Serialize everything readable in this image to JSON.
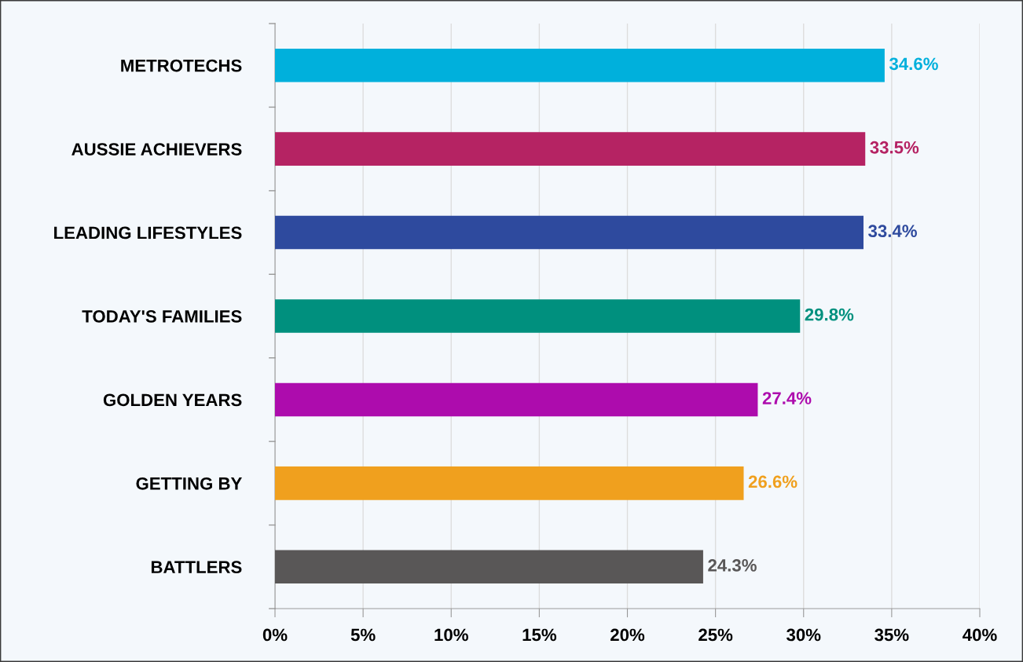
{
  "chart_data": {
    "type": "bar",
    "orientation": "horizontal",
    "categories": [
      "METROTECHS",
      "AUSSIE ACHIEVERS",
      "LEADING LIFESTYLES",
      "TODAY'S FAMILIES",
      "GOLDEN YEARS",
      "GETTING BY",
      "BATTLERS"
    ],
    "values": [
      34.6,
      33.5,
      33.4,
      29.8,
      27.4,
      26.6,
      24.3
    ],
    "colors": [
      "#00b0dc",
      "#b52363",
      "#2e4a9e",
      "#00907e",
      "#ad0cad",
      "#f0a01e",
      "#595757"
    ],
    "value_labels": [
      "34.6%",
      "33.5%",
      "33.4%",
      "29.8%",
      "27.4%",
      "26.6%",
      "24.3%"
    ],
    "xlim": [
      0,
      40
    ],
    "xticks": [
      {
        "value": 0,
        "label": "0%"
      },
      {
        "value": 5,
        "label": "5%"
      },
      {
        "value": 10,
        "label": "10%"
      },
      {
        "value": 15,
        "label": "15%"
      },
      {
        "value": 20,
        "label": "20%"
      },
      {
        "value": 25,
        "label": "25%"
      },
      {
        "value": 30,
        "label": "30%"
      },
      {
        "value": 35,
        "label": "35%"
      },
      {
        "value": 40,
        "label": "40%"
      }
    ],
    "grid": "x",
    "legend": false
  }
}
